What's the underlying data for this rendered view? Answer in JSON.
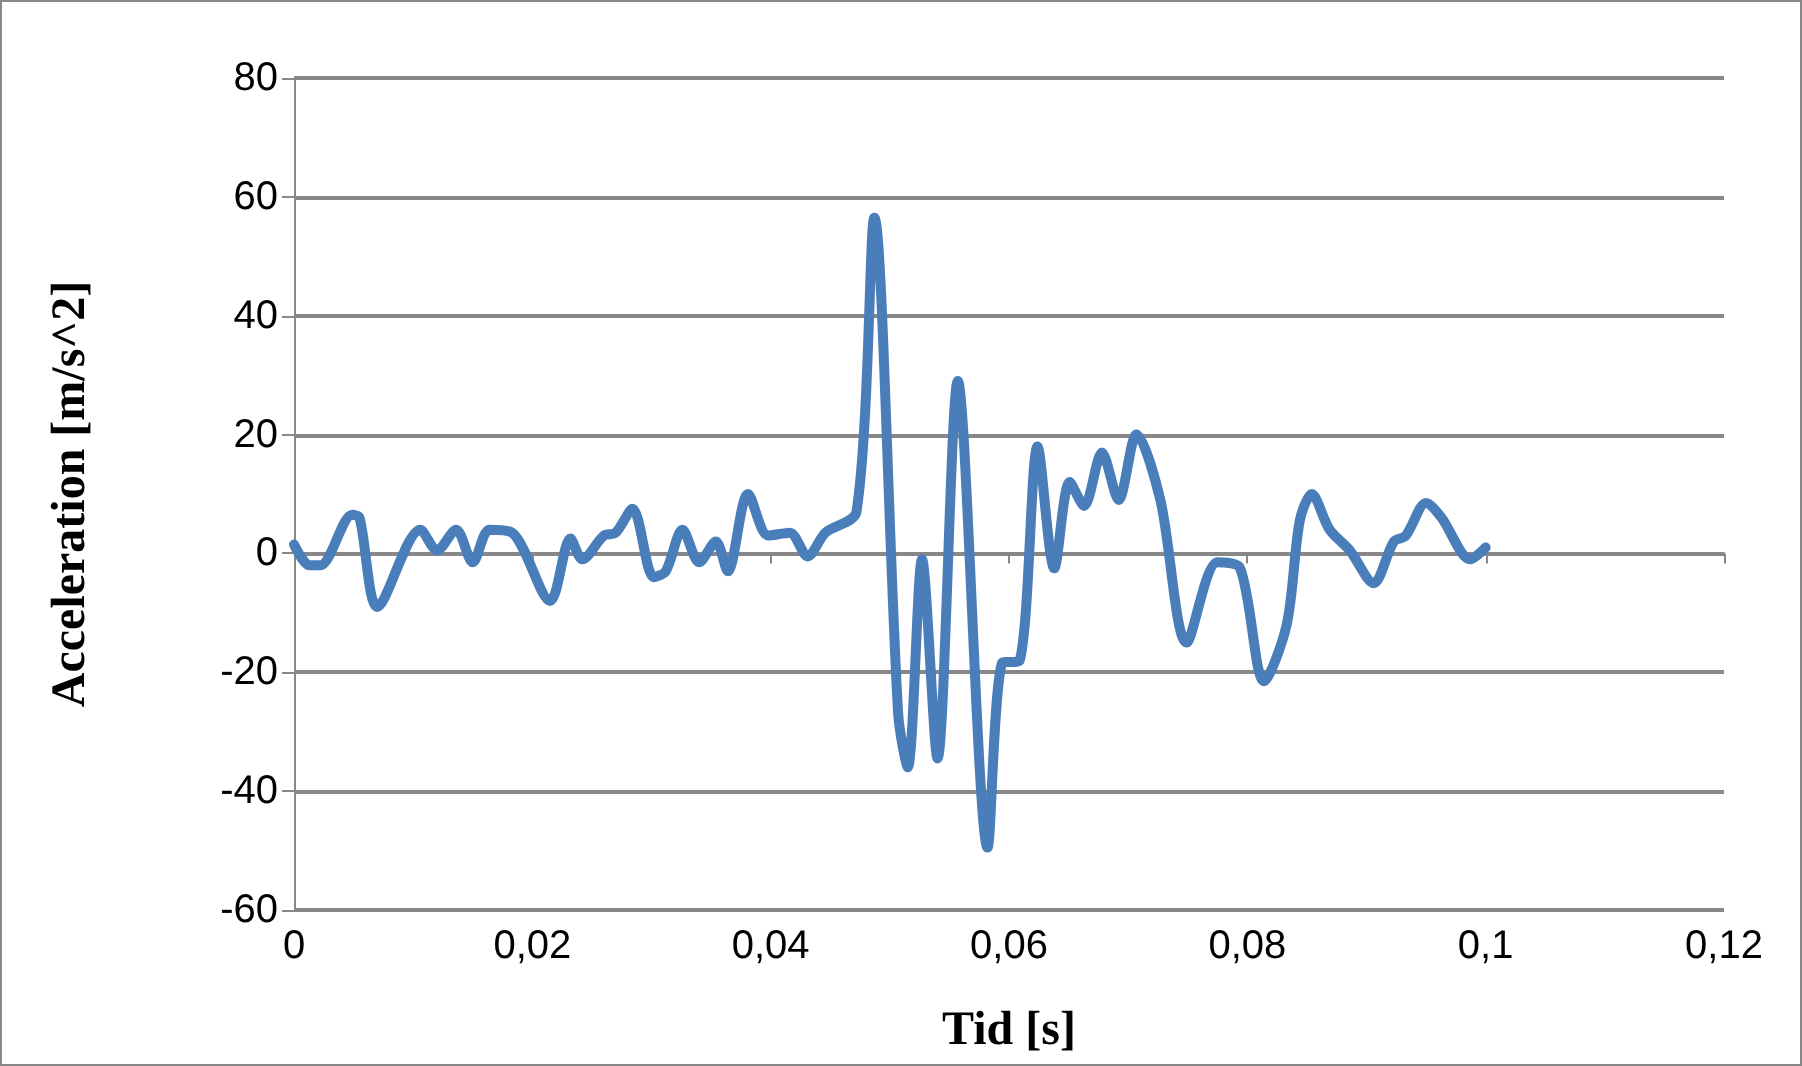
{
  "chart_data": {
    "type": "line",
    "xlabel": "Tid [s]",
    "ylabel": "Acceleration [m/s^2]",
    "xlim": [
      0,
      0.12
    ],
    "xticks": [
      {
        "value": 0,
        "label": "0"
      },
      {
        "value": 0.02,
        "label": "0,02"
      },
      {
        "value": 0.04,
        "label": "0,04"
      },
      {
        "value": 0.06,
        "label": "0,06"
      },
      {
        "value": 0.08,
        "label": "0,08"
      },
      {
        "value": 0.1,
        "label": "0,1"
      },
      {
        "value": 0.12,
        "label": "0,12"
      }
    ],
    "ylim": [
      -60,
      80
    ],
    "yticks": [
      -60,
      -40,
      -20,
      0,
      20,
      40,
      60,
      80
    ],
    "grid": "y",
    "marker": "none",
    "line_style": "solid",
    "series": [
      {
        "color": "#4a7ebb",
        "x": [
          0,
          0.0013,
          0.0022,
          0.0049,
          0.0055,
          0.007,
          0.0106,
          0.012,
          0.0136,
          0.015,
          0.0164,
          0.0183,
          0.0215,
          0.0232,
          0.0242,
          0.026,
          0.027,
          0.0284,
          0.0302,
          0.0312,
          0.0326,
          0.034,
          0.0354,
          0.0364,
          0.0381,
          0.0398,
          0.0416,
          0.0431,
          0.0446,
          0.0472,
          0.0487,
          0.0507,
          0.0515,
          0.0527,
          0.054,
          0.0557,
          0.0582,
          0.0594,
          0.0609,
          0.0624,
          0.0638,
          0.0651,
          0.0663,
          0.0678,
          0.0692,
          0.0707,
          0.0727,
          0.0749,
          0.0775,
          0.0794,
          0.0814,
          0.0833,
          0.0844,
          0.0854,
          0.0869,
          0.0886,
          0.0906,
          0.0923,
          0.0933,
          0.095,
          0.0963,
          0.0987,
          0.1
        ],
        "values": [
          1.5,
          -2,
          -2,
          6.5,
          6,
          -9,
          4,
          0.5,
          4,
          -1.5,
          4,
          3.5,
          -8,
          2.5,
          -1,
          3,
          3.5,
          7.5,
          -4,
          -3,
          4,
          -1.5,
          2,
          -3,
          10,
          3,
          3.5,
          -0.5,
          3.5,
          7,
          56.5,
          -27,
          -36,
          -1,
          -34.5,
          29,
          -49.5,
          -18.5,
          -18,
          18,
          -2.5,
          12,
          8,
          17,
          9,
          20,
          9,
          -15,
          -1.5,
          -2.5,
          -21.5,
          -12,
          5.5,
          10,
          4,
          0.5,
          -5,
          2,
          3,
          8.5,
          6,
          -1,
          1
        ]
      }
    ]
  }
}
